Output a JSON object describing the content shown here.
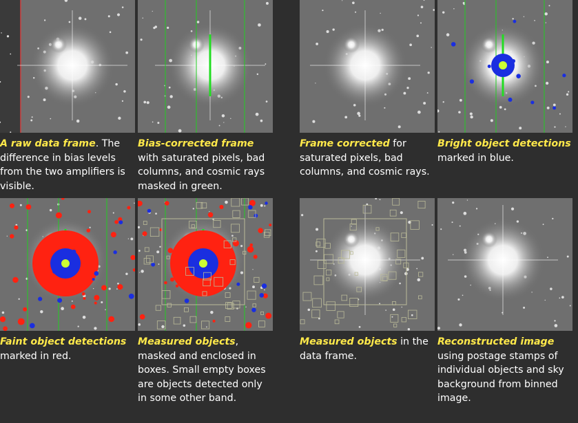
{
  "panels": [
    {
      "highlight": "A raw data frame",
      "text": ". The difference in bias levels from the two amplifiers is visible."
    },
    {
      "highlight": "Bias-corrected frame",
      "text": " with saturated pixels, bad columns, and cosmic rays masked in green."
    },
    {
      "highlight": "Frame corrected",
      "text": " for saturated pixels, bad columns, and cosmic rays."
    },
    {
      "highlight": "Bright object detections",
      "text": " marked in blue."
    },
    {
      "highlight": "Faint object detections",
      "text": " marked in red."
    },
    {
      "highlight": "Measured objects",
      "text": ", masked and enclosed in boxes. Small empty boxes are objects detected only in some other band."
    },
    {
      "highlight": "Measured objects",
      "text": " in the data frame."
    },
    {
      "highlight": "Reconstructed image",
      "text": " using postage stamps of individual objects and sky background from binned image."
    }
  ]
}
